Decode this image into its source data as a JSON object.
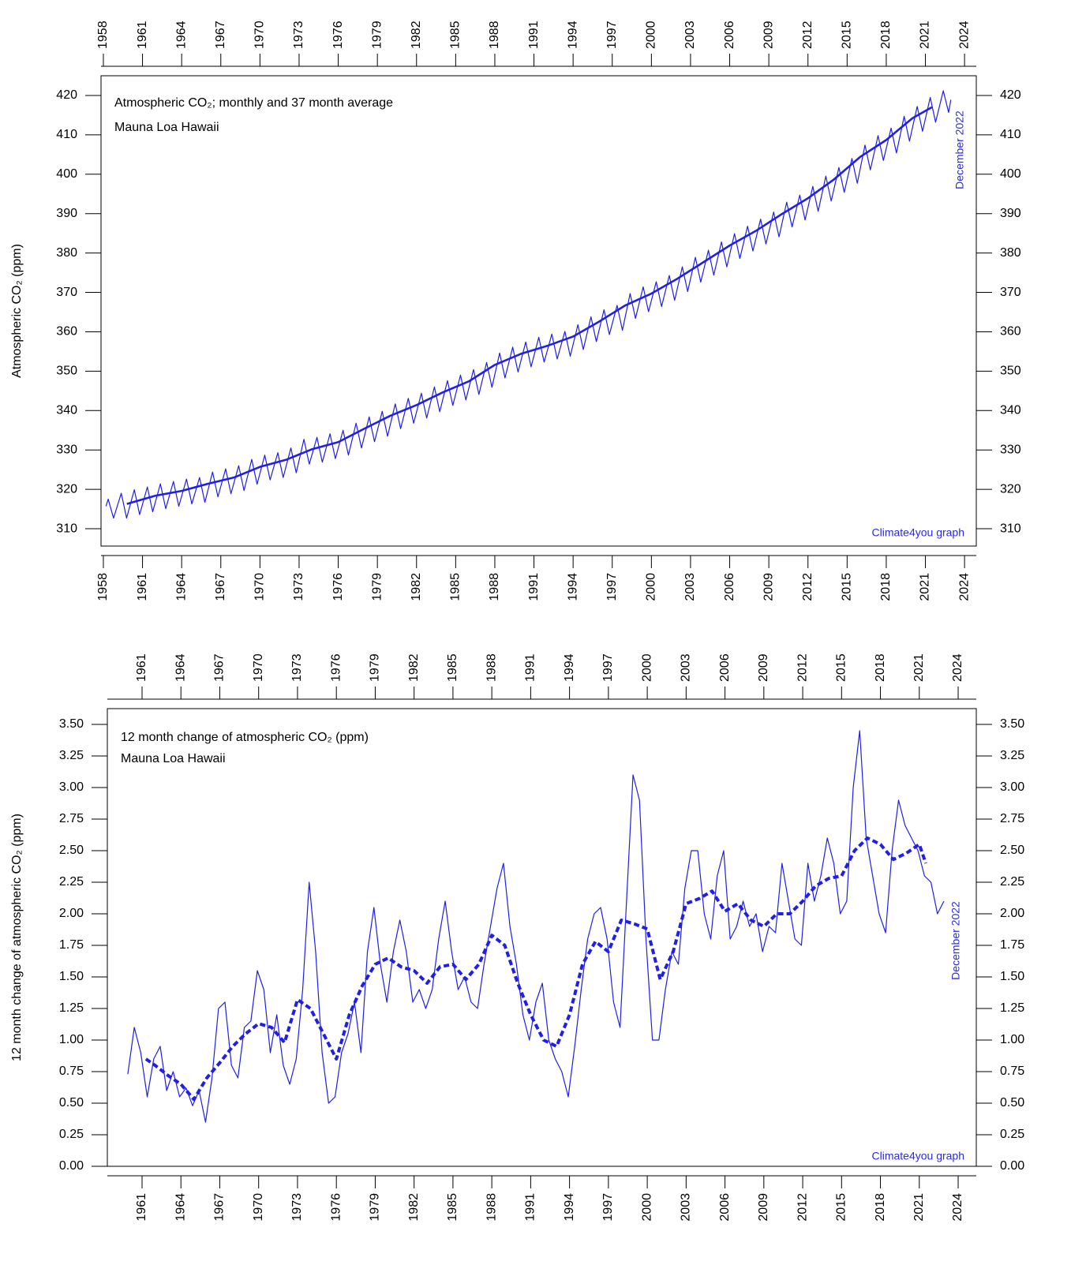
{
  "chart_data": [
    {
      "type": "line",
      "title": "Atmospheric CO₂; monthly and 37 month average",
      "subtitle": "Mauna Loa Hawaii",
      "y_label": "Atmospheric CO₂ (ppm)",
      "annotations": [
        "December 2022",
        "Climate4you graph"
      ],
      "xlim": [
        1957.82,
        2024.9
      ],
      "ylim": [
        305.6,
        425
      ],
      "xticks": [
        1958,
        1961,
        1964,
        1967,
        1970,
        1973,
        1976,
        1979,
        1982,
        1985,
        1988,
        1991,
        1994,
        1997,
        2000,
        2003,
        2006,
        2009,
        2012,
        2015,
        2018,
        2021,
        2024
      ],
      "yticks": [
        310,
        320,
        330,
        340,
        350,
        360,
        370,
        380,
        390,
        400,
        410,
        420
      ],
      "series": [
        {
          "linestyle": "solid",
          "color": "#1f1fe6",
          "x": [
            1958.2,
            1958.37,
            1958.78,
            1959.37,
            1959.78,
            1960.37,
            1960.78,
            1961.37,
            1961.78,
            1962.37,
            1962.78,
            1963.37,
            1963.78,
            1964.37,
            1964.78,
            1965.37,
            1965.78,
            1966.37,
            1966.78,
            1967.37,
            1967.78,
            1968.37,
            1968.78,
            1969.37,
            1969.78,
            1970.37,
            1970.78,
            1971.37,
            1971.78,
            1972.37,
            1972.78,
            1973.37,
            1973.78,
            1974.37,
            1974.78,
            1975.37,
            1975.78,
            1976.37,
            1976.78,
            1977.37,
            1977.78,
            1978.37,
            1978.78,
            1979.37,
            1979.78,
            1980.37,
            1980.78,
            1981.37,
            1981.78,
            1982.37,
            1982.78,
            1983.37,
            1983.78,
            1984.37,
            1984.78,
            1985.37,
            1985.78,
            1986.37,
            1986.78,
            1987.37,
            1987.78,
            1988.37,
            1988.78,
            1989.37,
            1989.78,
            1990.37,
            1990.78,
            1991.37,
            1991.78,
            1992.37,
            1992.78,
            1993.37,
            1993.78,
            1994.37,
            1994.78,
            1995.37,
            1995.78,
            1996.37,
            1996.78,
            1997.37,
            1997.78,
            1998.37,
            1998.78,
            1999.37,
            1999.78,
            2000.37,
            2000.78,
            2001.37,
            2001.78,
            2002.37,
            2002.78,
            2003.37,
            2003.78,
            2004.37,
            2004.78,
            2005.37,
            2005.78,
            2006.37,
            2006.78,
            2007.37,
            2007.78,
            2008.37,
            2008.78,
            2009.37,
            2009.78,
            2010.37,
            2010.78,
            2011.37,
            2011.78,
            2012.37,
            2012.78,
            2013.37,
            2013.78,
            2014.37,
            2014.78,
            2015.37,
            2015.78,
            2016.37,
            2016.78,
            2017.37,
            2017.78,
            2018.37,
            2018.78,
            2019.37,
            2019.78,
            2020.37,
            2020.78,
            2021.37,
            2021.78,
            2022.37,
            2022.78,
            2022.95
          ],
          "values": [
            315.7,
            317.5,
            312.7,
            319.0,
            312.7,
            319.9,
            313.6,
            320.6,
            314.3,
            321.4,
            315.1,
            322.0,
            315.7,
            322.6,
            316.3,
            323.0,
            316.7,
            324.4,
            318.1,
            325.2,
            318.9,
            326.0,
            319.7,
            327.6,
            321.3,
            328.7,
            322.4,
            329.3,
            323.0,
            330.5,
            324.2,
            332.7,
            326.4,
            333.2,
            326.9,
            334.1,
            327.8,
            335.0,
            328.7,
            336.8,
            330.5,
            338.4,
            332.1,
            339.8,
            333.5,
            341.7,
            335.4,
            343.1,
            336.8,
            344.4,
            338.1,
            346.0,
            339.7,
            347.6,
            341.3,
            349.0,
            342.7,
            350.4,
            344.1,
            352.2,
            345.9,
            354.6,
            348.3,
            356.1,
            349.8,
            357.4,
            351.1,
            358.6,
            352.3,
            359.4,
            353.1,
            360.1,
            353.8,
            361.8,
            355.5,
            363.8,
            357.5,
            365.6,
            359.3,
            366.7,
            360.4,
            369.7,
            363.4,
            371.4,
            365.1,
            372.7,
            366.4,
            374.3,
            368.0,
            376.5,
            370.2,
            378.9,
            372.6,
            380.7,
            374.4,
            382.8,
            376.5,
            384.9,
            378.6,
            386.8,
            380.5,
            388.6,
            382.3,
            390.4,
            384.1,
            392.9,
            386.6,
            394.7,
            388.4,
            396.9,
            390.6,
            399.5,
            393.2,
            401.7,
            395.4,
            404.0,
            397.7,
            407.4,
            401.1,
            409.8,
            403.5,
            411.7,
            405.4,
            414.7,
            408.4,
            417.2,
            410.9,
            419.5,
            413.2,
            421.2,
            415.7,
            418.9
          ]
        },
        {
          "linestyle": "thick",
          "color": "#1f1fe6",
          "x": [
            1959.8,
            1962,
            1964,
            1966,
            1968,
            1970,
            1972,
            1974,
            1976,
            1978,
            1980,
            1982,
            1984,
            1986,
            1988,
            1990,
            1992,
            1994,
            1996,
            1998,
            2000,
            2002,
            2004,
            2006,
            2008,
            2010,
            2012,
            2014,
            2016,
            2018,
            2020,
            2021.5
          ],
          "values": [
            316.3,
            318.4,
            319.6,
            321.4,
            323.0,
            325.7,
            327.5,
            330.2,
            332.0,
            335.4,
            338.7,
            341.4,
            344.6,
            347.4,
            351.6,
            354.4,
            356.4,
            358.8,
            362.6,
            366.7,
            369.7,
            373.5,
            377.7,
            381.9,
            385.6,
            389.9,
            393.9,
            398.7,
            404.4,
            408.7,
            414.2,
            417.0
          ]
        }
      ]
    },
    {
      "type": "line",
      "title": "12 month change of atmospheric CO₂ (ppm)",
      "subtitle": "Mauna Loa Hawaii",
      "y_label": "12 month change of atmospheric CO₂ (ppm)",
      "annotations": [
        "December 2022",
        "Climate4you graph"
      ],
      "xlim": [
        1958.32,
        2025.4
      ],
      "ylim": [
        0,
        3.625
      ],
      "xticks": [
        1961,
        1964,
        1967,
        1970,
        1973,
        1976,
        1979,
        1982,
        1985,
        1988,
        1991,
        1994,
        1997,
        2000,
        2003,
        2006,
        2009,
        2012,
        2015,
        2018,
        2021,
        2024
      ],
      "yticks": [
        {
          "value": 0,
          "label": "0.00"
        },
        0.25,
        {
          "value": 0.5,
          "label": "0.50"
        },
        0.75,
        {
          "value": 1,
          "label": "1.00"
        },
        1.25,
        {
          "value": 1.5,
          "label": "1.50"
        },
        1.75,
        {
          "value": 2,
          "label": "2.00"
        },
        2.25,
        {
          "value": 2.5,
          "label": "2.50"
        },
        2.75,
        {
          "value": 3,
          "label": "3.00"
        },
        3.25,
        {
          "value": 3.5,
          "label": "3.50"
        }
      ],
      "series": [
        {
          "linestyle": "solid",
          "color": "#1f1fe6",
          "x": [
            1959.9,
            1960.4,
            1960.9,
            1961.4,
            1961.9,
            1962.4,
            1962.9,
            1963.4,
            1963.9,
            1964.4,
            1964.9,
            1965.4,
            1965.9,
            1966.4,
            1966.9,
            1967.4,
            1967.9,
            1968.4,
            1968.9,
            1969.4,
            1969.9,
            1970.4,
            1970.9,
            1971.4,
            1971.9,
            1972.4,
            1972.9,
            1973.4,
            1973.9,
            1974.4,
            1974.9,
            1975.4,
            1975.9,
            1976.4,
            1976.9,
            1977.4,
            1977.9,
            1978.4,
            1978.9,
            1979.4,
            1979.9,
            1980.4,
            1980.9,
            1981.4,
            1981.9,
            1982.4,
            1982.9,
            1983.4,
            1983.9,
            1984.4,
            1984.9,
            1985.4,
            1985.9,
            1986.4,
            1986.9,
            1987.4,
            1987.9,
            1988.4,
            1988.9,
            1989.4,
            1989.9,
            1990.4,
            1990.9,
            1991.4,
            1991.9,
            1992.4,
            1992.9,
            1993.4,
            1993.9,
            1994.4,
            1994.9,
            1995.4,
            1995.9,
            1996.4,
            1996.9,
            1997.4,
            1997.9,
            1998.4,
            1998.9,
            1999.4,
            1999.9,
            2000.4,
            2000.9,
            2001.4,
            2001.9,
            2002.4,
            2002.9,
            2003.4,
            2003.9,
            2004.4,
            2004.9,
            2005.4,
            2005.9,
            2006.4,
            2006.9,
            2007.4,
            2007.9,
            2008.4,
            2008.9,
            2009.4,
            2009.9,
            2010.4,
            2010.9,
            2011.4,
            2011.9,
            2012.4,
            2012.9,
            2013.4,
            2013.9,
            2014.4,
            2014.9,
            2015.4,
            2015.9,
            2016.4,
            2016.9,
            2017.4,
            2017.9,
            2018.4,
            2018.9,
            2019.4,
            2019.9,
            2020.4,
            2020.9,
            2021.4,
            2021.9,
            2022.4,
            2022.9
          ],
          "values": [
            0.73,
            1.1,
            0.9,
            0.55,
            0.85,
            0.95,
            0.6,
            0.75,
            0.55,
            0.62,
            0.48,
            0.6,
            0.35,
            0.7,
            1.25,
            1.3,
            0.8,
            0.7,
            1.1,
            1.15,
            1.55,
            1.4,
            0.9,
            1.2,
            0.8,
            0.65,
            0.85,
            1.4,
            2.25,
            1.7,
            0.9,
            0.5,
            0.55,
            0.9,
            1.05,
            1.3,
            0.9,
            1.7,
            2.05,
            1.6,
            1.3,
            1.7,
            1.95,
            1.7,
            1.3,
            1.4,
            1.25,
            1.4,
            1.8,
            2.1,
            1.7,
            1.4,
            1.5,
            1.3,
            1.25,
            1.6,
            1.9,
            2.2,
            2.4,
            1.9,
            1.6,
            1.2,
            1.0,
            1.3,
            1.45,
            1.0,
            0.85,
            0.75,
            0.55,
            0.95,
            1.4,
            1.8,
            2.0,
            2.05,
            1.8,
            1.3,
            1.1,
            2.1,
            3.1,
            2.9,
            1.8,
            1.0,
            1.0,
            1.4,
            1.7,
            1.6,
            2.2,
            2.5,
            2.5,
            2.0,
            1.8,
            2.3,
            2.5,
            1.8,
            1.9,
            2.1,
            1.9,
            2.0,
            1.7,
            1.9,
            1.85,
            2.4,
            2.1,
            1.8,
            1.75,
            2.4,
            2.1,
            2.3,
            2.6,
            2.4,
            2.0,
            2.1,
            3.0,
            3.45,
            2.6,
            2.3,
            2.0,
            1.85,
            2.5,
            2.9,
            2.7,
            2.6,
            2.5,
            2.3,
            2.25,
            2.0,
            2.1
          ]
        },
        {
          "linestyle": "dashed",
          "color": "#1f1fe6",
          "x": [
            1961.3,
            1962,
            1963,
            1964,
            1965,
            1966,
            1967,
            1968,
            1969,
            1970,
            1971,
            1972,
            1973,
            1974,
            1975,
            1976,
            1977,
            1978,
            1979,
            1980,
            1981,
            1982,
            1983,
            1984,
            1985,
            1986,
            1987,
            1988,
            1989,
            1990,
            1991,
            1992,
            1993,
            1994,
            1995,
            1996,
            1997,
            1998,
            1999,
            2000,
            2001,
            2002,
            2003,
            2004,
            2005,
            2006,
            2007,
            2008,
            2009,
            2010,
            2011,
            2012,
            2013,
            2014,
            2015,
            2016,
            2017,
            2018,
            2019,
            2020,
            2021,
            2021.5
          ],
          "values": [
            0.85,
            0.8,
            0.72,
            0.65,
            0.53,
            0.7,
            0.82,
            0.95,
            1.05,
            1.13,
            1.1,
            0.98,
            1.32,
            1.25,
            1.05,
            0.85,
            1.2,
            1.43,
            1.6,
            1.65,
            1.58,
            1.55,
            1.45,
            1.58,
            1.6,
            1.48,
            1.6,
            1.83,
            1.75,
            1.45,
            1.2,
            1.0,
            0.95,
            1.2,
            1.6,
            1.78,
            1.7,
            1.95,
            1.92,
            1.88,
            1.48,
            1.7,
            2.08,
            2.12,
            2.18,
            2.02,
            2.08,
            1.95,
            1.9,
            2.0,
            2.0,
            2.1,
            2.22,
            2.28,
            2.3,
            2.5,
            2.6,
            2.55,
            2.43,
            2.48,
            2.55,
            2.4
          ]
        }
      ]
    }
  ]
}
